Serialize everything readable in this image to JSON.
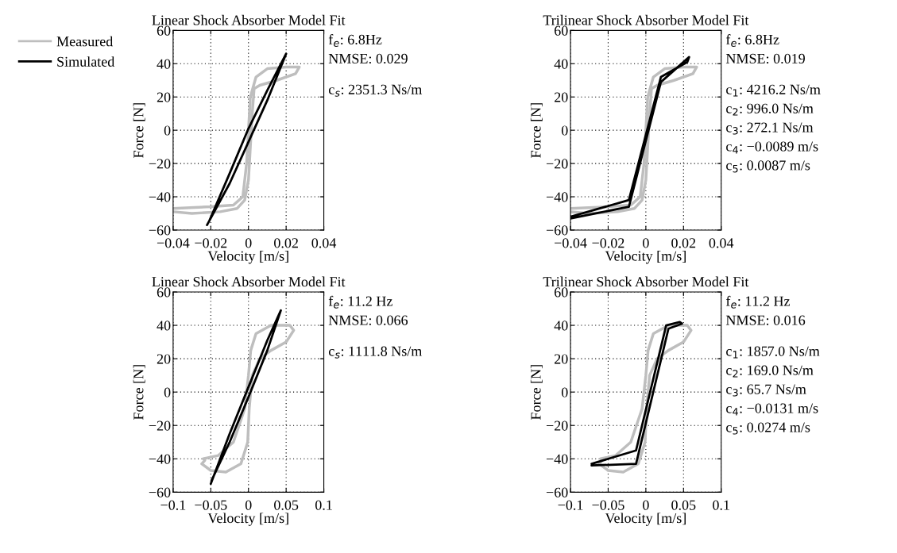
{
  "chart_data": [
    {
      "type": "line",
      "title": "Linear Shock Absorber Model Fit",
      "xlabel": "Velocity [m/s]",
      "ylabel": "Force [N]",
      "xlim": [
        -0.04,
        0.04
      ],
      "xticks": [
        -0.04,
        -0.02,
        0,
        0.02,
        0.04
      ],
      "ylim": [
        -60,
        60
      ],
      "yticks": [
        -60,
        -40,
        -20,
        0,
        20,
        40,
        60
      ],
      "grid": true,
      "legend": "left",
      "annotations": [
        "f$_{e}$: 6.8Hz",
        "NMSE: 0.029",
        "c$_{s}$: 2351.3 Ns/m"
      ],
      "series": [
        {
          "name": "Measured",
          "color": "#bebebe",
          "x": [
            -0.04,
            -0.02,
            -0.008,
            -0.003,
            -0.001,
            0,
            0.001,
            0.004,
            0.01,
            0.02,
            0.027,
            0.025,
            0.015,
            0.006,
            0.003,
            0.002,
            0.001,
            0,
            -0.002,
            -0.006,
            -0.015,
            -0.03,
            -0.04
          ],
          "values": [
            -47,
            -46,
            -45,
            -40,
            -20,
            0,
            20,
            32,
            37,
            38,
            38,
            34,
            30,
            27,
            25,
            10,
            -10,
            -30,
            -42,
            -47,
            -49,
            -50,
            -49
          ]
        },
        {
          "name": "Simulated",
          "color": "#000000",
          "x": [
            -0.022,
            -0.01,
            0,
            0.01,
            0.02,
            0.01,
            0,
            -0.01,
            -0.021
          ],
          "values": [
            -57,
            -32,
            -7,
            18,
            46,
            24,
            1,
            -26,
            -55
          ]
        }
      ]
    },
    {
      "type": "line",
      "title": "Trilinear Shock Absorber Model Fit",
      "xlabel": "Velocity [m/s]",
      "ylabel": "Force [N]",
      "xlim": [
        -0.04,
        0.04
      ],
      "xticks": [
        -0.04,
        -0.02,
        0,
        0.02,
        0.04
      ],
      "ylim": [
        -60,
        60
      ],
      "yticks": [
        -60,
        -40,
        -20,
        0,
        20,
        40,
        60
      ],
      "grid": true,
      "annotations": [
        "f$_{e}$: 6.8Hz",
        "NMSE: 0.019",
        "c$_{1}$: 4216.2 Ns/m",
        "c$_{2}$: 996.0 Ns/m",
        "c$_{3}$: 272.1 Ns/m",
        "c$_{4}$: −0.0089 m/s",
        "c$_{5}$: 0.0087 m/s"
      ],
      "series": [
        {
          "color": "#bebebe",
          "x": [
            -0.04,
            -0.02,
            -0.008,
            -0.003,
            -0.001,
            0,
            0.001,
            0.004,
            0.01,
            0.02,
            0.027,
            0.025,
            0.015,
            0.006,
            0.003,
            0.002,
            0.001,
            0,
            -0.002,
            -0.006,
            -0.015,
            -0.03,
            -0.04
          ],
          "values": [
            -47,
            -46,
            -45,
            -40,
            -20,
            0,
            20,
            32,
            37,
            38,
            38,
            34,
            30,
            27,
            25,
            10,
            -10,
            -30,
            -42,
            -47,
            -49,
            -50,
            -49
          ]
        },
        {
          "color": "#000000",
          "x": [
            -0.04,
            -0.009,
            0.008,
            0.023,
            0.022,
            0.008,
            -0.009,
            -0.04
          ],
          "values": [
            -53,
            -46,
            29,
            44,
            41,
            32,
            -42,
            -52
          ]
        }
      ]
    },
    {
      "type": "line",
      "title": "Linear Shock Absorber Model Fit",
      "xlabel": "Velocity [m/s]",
      "ylabel": "Force [N]",
      "xlim": [
        -0.1,
        0.1
      ],
      "xticks": [
        -0.1,
        -0.05,
        0,
        0.05,
        0.1
      ],
      "ylim": [
        -60,
        60
      ],
      "yticks": [
        -60,
        -40,
        -20,
        0,
        20,
        40,
        60
      ],
      "grid": true,
      "annotations": [
        "f$_{e}$: 11.2 Hz",
        "NMSE: 0.066",
        "c$_{s}$: 1111.8 Ns/m"
      ],
      "series": [
        {
          "color": "#bebebe",
          "x": [
            -0.06,
            -0.04,
            -0.02,
            -0.005,
            0,
            0.003,
            0.01,
            0.03,
            0.055,
            0.06,
            0.05,
            0.03,
            0.015,
            0.005,
            0.001,
            -0.001,
            -0.01,
            -0.03,
            -0.05,
            -0.062,
            -0.058
          ],
          "values": [
            -40,
            -38,
            -30,
            -10,
            10,
            25,
            35,
            40,
            40,
            37,
            30,
            25,
            20,
            10,
            -10,
            -30,
            -43,
            -48,
            -47,
            -43,
            -41
          ]
        },
        {
          "color": "#000000",
          "x": [
            -0.05,
            -0.025,
            0,
            0.025,
            0.043,
            0.025,
            0,
            -0.025,
            -0.049
          ],
          "values": [
            -55,
            -25,
            3,
            31,
            49,
            25,
            -3,
            -30,
            -53
          ]
        }
      ]
    },
    {
      "type": "line",
      "title": "Trilinear Shock Absorber Model Fit",
      "xlabel": "Velocity [m/s]",
      "ylabel": "Force [N]",
      "xlim": [
        -0.1,
        0.1
      ],
      "xticks": [
        -0.1,
        -0.05,
        0,
        0.05,
        0.1
      ],
      "ylim": [
        -60,
        60
      ],
      "yticks": [
        -60,
        -40,
        -20,
        0,
        20,
        40,
        60
      ],
      "grid": true,
      "annotations": [
        "f$_{e}$: 11.2 Hz",
        "NMSE: 0.016",
        "c$_{1}$: 1857.0 Ns/m",
        "c$_{2}$: 169.0 Ns/m",
        "c$_{3}$: 65.7 Ns/m",
        "c$_{4}$: −0.0131 m/s",
        "c$_{5}$: 0.0274 m/s"
      ],
      "series": [
        {
          "color": "#bebebe",
          "x": [
            -0.06,
            -0.04,
            -0.02,
            -0.005,
            0,
            0.003,
            0.01,
            0.03,
            0.055,
            0.06,
            0.05,
            0.03,
            0.015,
            0.005,
            0.001,
            -0.001,
            -0.01,
            -0.03,
            -0.05,
            -0.062,
            -0.058
          ],
          "values": [
            -40,
            -38,
            -30,
            -10,
            10,
            25,
            35,
            40,
            40,
            37,
            30,
            25,
            20,
            10,
            -10,
            -30,
            -43,
            -48,
            -47,
            -43,
            -41
          ]
        },
        {
          "color": "#000000",
          "x": [
            -0.072,
            -0.013,
            0.027,
            0.045,
            0.048,
            0.03,
            -0.013,
            -0.072
          ],
          "values": [
            -43,
            -35,
            40,
            42,
            41,
            38,
            -43,
            -44
          ]
        }
      ]
    }
  ]
}
